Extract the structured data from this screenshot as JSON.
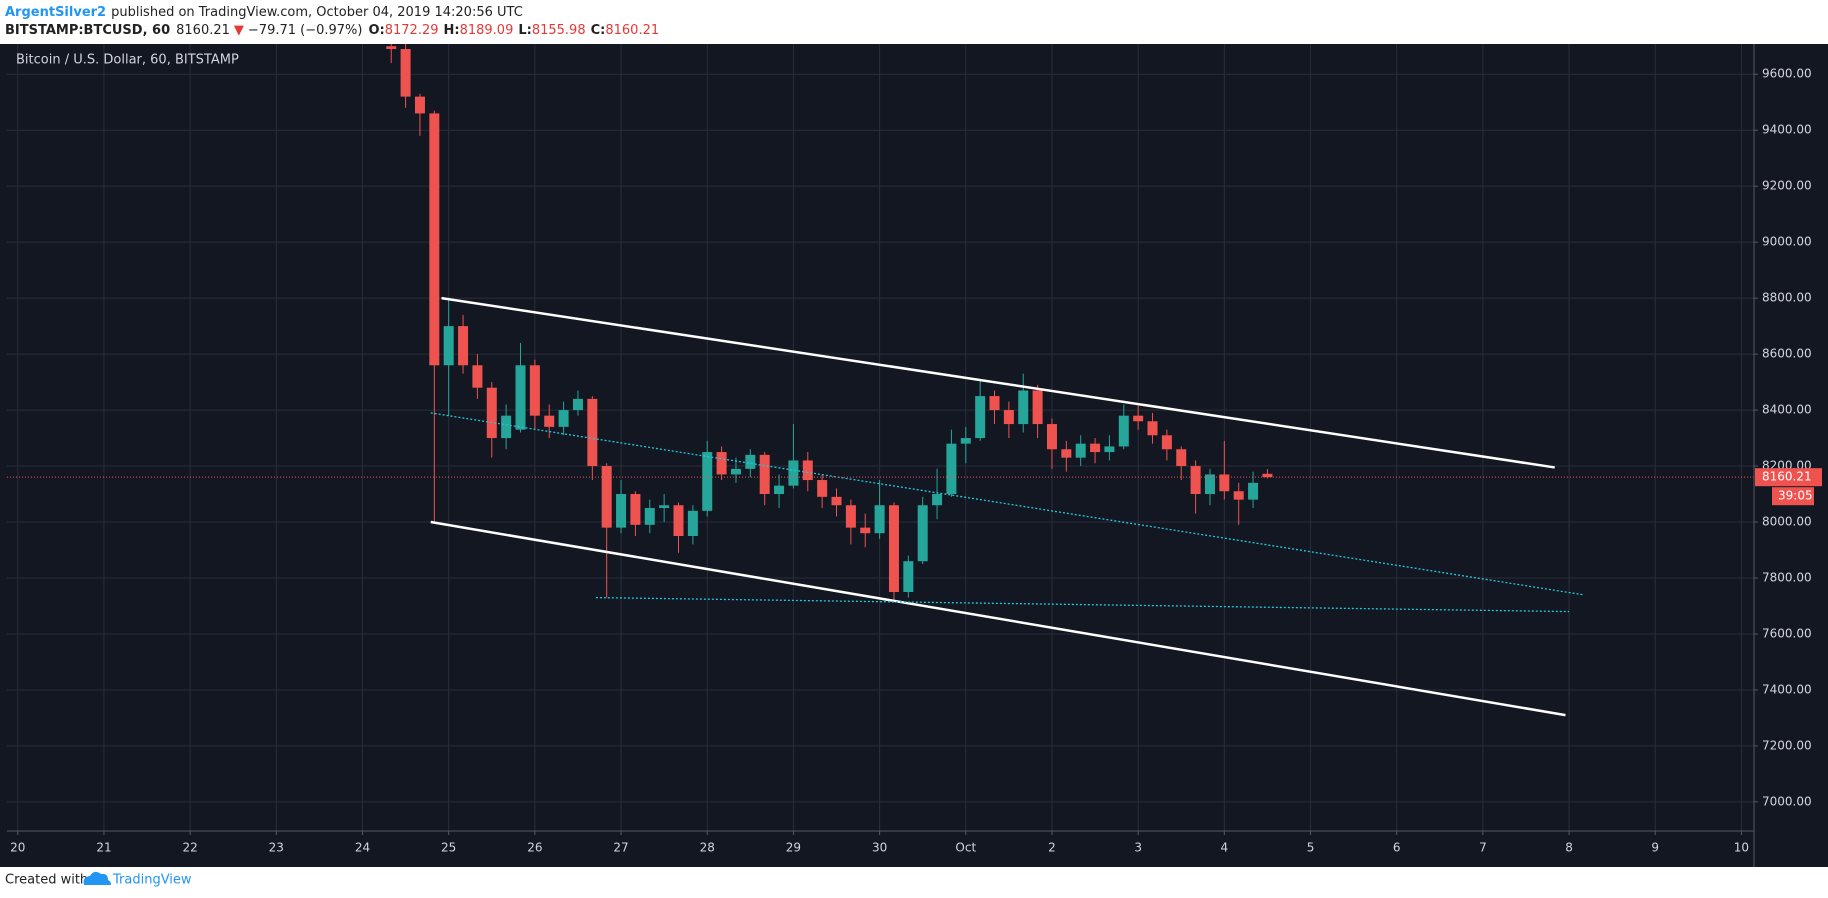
{
  "header": {
    "author": "ArgentSilver2",
    "published": "published on TradingView.com, October 04, 2019 14:20:56 UTC",
    "symbol": "BITSTAMP:BTCUSD, 60",
    "arrow": "▼",
    "change": "−79.71 (−0.97%)",
    "o_label": "O:",
    "o": "8172.29",
    "h_label": "H:",
    "h": "8189.09",
    "l_label": "L:",
    "l": "8155.98",
    "c_label": "C:",
    "c": "8160.21"
  },
  "footer": {
    "created": "Created with",
    "brand": "TradingView"
  },
  "chart_data": {
    "type": "candlestick",
    "title": "Bitcoin / U.S. Dollar, 60, BITSTAMP",
    "x": [
      "2019-09-24T08:00",
      "2019-09-24T12:00",
      "2019-09-24T16:00",
      "2019-09-24T20:00",
      "2019-09-25T00:00",
      "2019-09-25T04:00",
      "2019-09-25T08:00",
      "2019-09-25T12:00",
      "2019-09-25T16:00",
      "2019-09-25T20:00",
      "2019-09-26T00:00",
      "2019-09-26T04:00",
      "2019-09-26T08:00",
      "2019-09-26T12:00",
      "2019-09-26T16:00",
      "2019-09-26T20:00",
      "2019-09-27T00:00",
      "2019-09-27T04:00",
      "2019-09-27T08:00",
      "2019-09-27T12:00",
      "2019-09-27T16:00",
      "2019-09-27T20:00",
      "2019-09-28T00:00",
      "2019-09-28T04:00",
      "2019-09-28T08:00",
      "2019-09-28T12:00",
      "2019-09-28T16:00",
      "2019-09-28T20:00",
      "2019-09-29T00:00",
      "2019-09-29T04:00",
      "2019-09-29T08:00",
      "2019-09-29T12:00",
      "2019-09-29T16:00",
      "2019-09-29T20:00",
      "2019-09-30T00:00",
      "2019-09-30T04:00",
      "2019-09-30T08:00",
      "2019-09-30T12:00",
      "2019-09-30T16:00",
      "2019-09-30T20:00",
      "2019-10-01T00:00",
      "2019-10-01T04:00",
      "2019-10-01T08:00",
      "2019-10-01T12:00",
      "2019-10-01T16:00",
      "2019-10-01T20:00",
      "2019-10-02T00:00",
      "2019-10-02T04:00",
      "2019-10-02T08:00",
      "2019-10-02T12:00",
      "2019-10-02T16:00",
      "2019-10-02T20:00",
      "2019-10-03T00:00",
      "2019-10-03T04:00",
      "2019-10-03T08:00",
      "2019-10-03T12:00",
      "2019-10-03T16:00",
      "2019-10-03T20:00",
      "2019-10-04T00:00",
      "2019-10-04T04:00",
      "2019-10-04T08:00",
      "2019-10-04T12:00"
    ],
    "open": [
      9700,
      9690,
      9520,
      9460,
      8560,
      8700,
      8560,
      8480,
      8300,
      8330,
      8560,
      8380,
      8340,
      8400,
      8440,
      8200,
      7980,
      8100,
      7990,
      8050,
      8060,
      7950,
      8040,
      8250,
      8170,
      8190,
      8240,
      8100,
      8130,
      8220,
      8150,
      8090,
      8060,
      7980,
      7960,
      8060,
      7750,
      7860,
      8060,
      8100,
      8280,
      8300,
      8450,
      8400,
      8350,
      8470,
      8350,
      8260,
      8230,
      8280,
      8250,
      8270,
      8380,
      8360,
      8310,
      8260,
      8200,
      8100,
      8170,
      8110,
      8080,
      8172.29
    ],
    "high": [
      9720,
      9710,
      9530,
      9470,
      8800,
      8740,
      8600,
      8500,
      8420,
      8640,
      8580,
      8420,
      8430,
      8470,
      8450,
      8210,
      8150,
      8110,
      8080,
      8100,
      8070,
      8060,
      8290,
      8270,
      8230,
      8260,
      8250,
      8170,
      8350,
      8250,
      8170,
      8120,
      8080,
      8030,
      8150,
      8070,
      7880,
      8090,
      8190,
      8330,
      8340,
      8510,
      8470,
      8430,
      8530,
      8490,
      8370,
      8290,
      8310,
      8300,
      8310,
      8420,
      8420,
      8390,
      8330,
      8270,
      8220,
      8190,
      8290,
      8140,
      8180,
      8189.09
    ],
    "low": [
      9640,
      9480,
      9380,
      8000,
      8380,
      8530,
      8440,
      8230,
      8260,
      8320,
      8330,
      8300,
      8310,
      8380,
      8150,
      7730,
      7960,
      7950,
      7960,
      8000,
      7890,
      7920,
      8020,
      8150,
      8140,
      8160,
      8060,
      8050,
      8120,
      8110,
      8050,
      8020,
      7920,
      7910,
      7940,
      7720,
      7730,
      7850,
      8010,
      8090,
      8210,
      8290,
      8350,
      8300,
      8320,
      8300,
      8190,
      8180,
      8200,
      8210,
      8220,
      8260,
      8330,
      8280,
      8220,
      8150,
      8030,
      8060,
      8080,
      7990,
      8050,
      8155.98
    ],
    "close": [
      9690,
      9520,
      9460,
      8560,
      8700,
      8560,
      8480,
      8300,
      8380,
      8560,
      8380,
      8340,
      8400,
      8440,
      8200,
      7980,
      8100,
      7990,
      8050,
      8060,
      7950,
      8040,
      8250,
      8170,
      8190,
      8240,
      8100,
      8130,
      8220,
      8150,
      8090,
      8060,
      7980,
      7960,
      8060,
      7750,
      7860,
      8060,
      8100,
      8280,
      8300,
      8450,
      8400,
      8350,
      8470,
      8350,
      8260,
      8230,
      8280,
      8250,
      8270,
      8380,
      8360,
      8310,
      8260,
      8200,
      8100,
      8170,
      8110,
      8080,
      8140,
      8160.21
    ],
    "up_color": "#26a69a",
    "down_color": "#ef5350",
    "last_price": {
      "value": 8160.21,
      "label": "8160.21"
    },
    "countdown": "39:05",
    "drawings": [
      {
        "color": "#ffffff",
        "style": "solid",
        "x": [
          "2019-09-24T22:00",
          "2019-10-07T20:00"
        ],
        "y": [
          8800,
          8195
        ]
      },
      {
        "color": "#ffffff",
        "style": "solid",
        "x": [
          "2019-09-24T19:00",
          "2019-10-07T23:00"
        ],
        "y": [
          8000,
          7310
        ]
      },
      {
        "color": "#26c6da",
        "style": "dotted",
        "x": [
          "2019-09-24T19:00",
          "2019-10-08T04:00"
        ],
        "y": [
          8390,
          7740
        ]
      },
      {
        "color": "#26c6da",
        "style": "dotted",
        "x": [
          "2019-09-26T17:00",
          "2019-10-08T00:00"
        ],
        "y": [
          7730,
          7680
        ]
      }
    ],
    "xlim": [
      "2019-09-19T21:00",
      "2019-10-10T03:30"
    ],
    "xticks": [
      {
        "value": "2019-09-20",
        "label": "20"
      },
      {
        "value": "2019-09-21",
        "label": "21"
      },
      {
        "value": "2019-09-22",
        "label": "22"
      },
      {
        "value": "2019-09-23",
        "label": "23"
      },
      {
        "value": "2019-09-24",
        "label": "24"
      },
      {
        "value": "2019-09-25",
        "label": "25"
      },
      {
        "value": "2019-09-26",
        "label": "26"
      },
      {
        "value": "2019-09-27",
        "label": "27"
      },
      {
        "value": "2019-09-28",
        "label": "28"
      },
      {
        "value": "2019-09-29",
        "label": "29"
      },
      {
        "value": "2019-09-30",
        "label": "30"
      },
      {
        "value": "2019-10-01",
        "label": "Oct"
      },
      {
        "value": "2019-10-02",
        "label": "2"
      },
      {
        "value": "2019-10-03",
        "label": "3"
      },
      {
        "value": "2019-10-04",
        "label": "4"
      },
      {
        "value": "2019-10-05",
        "label": "5"
      },
      {
        "value": "2019-10-06",
        "label": "6"
      },
      {
        "value": "2019-10-07",
        "label": "7"
      },
      {
        "value": "2019-10-08",
        "label": "8"
      },
      {
        "value": "2019-10-09",
        "label": "9"
      },
      {
        "value": "2019-10-10",
        "label": "10"
      }
    ],
    "ylim": [
      6896,
      9708
    ],
    "yticks": [
      {
        "value": 7000,
        "label": "7000.00"
      },
      {
        "value": 7200,
        "label": "7200.00"
      },
      {
        "value": 7400,
        "label": "7400.00"
      },
      {
        "value": 7600,
        "label": "7600.00"
      },
      {
        "value": 7800,
        "label": "7800.00"
      },
      {
        "value": 8000,
        "label": "8000.00"
      },
      {
        "value": 8200,
        "label": "8200.00"
      },
      {
        "value": 8400,
        "label": "8400.00"
      },
      {
        "value": 8600,
        "label": "8600.00"
      },
      {
        "value": 8800,
        "label": "8800.00"
      },
      {
        "value": 9000,
        "label": "9000.00"
      },
      {
        "value": 9200,
        "label": "9200.00"
      },
      {
        "value": 9400,
        "label": "9400.00"
      },
      {
        "value": 9600,
        "label": "9600.00"
      }
    ],
    "grid": true
  }
}
